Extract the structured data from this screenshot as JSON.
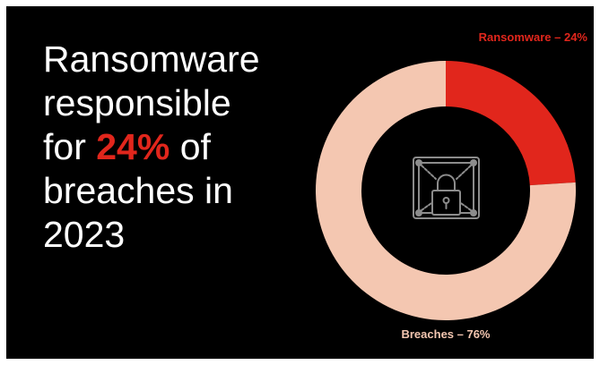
{
  "headline": {
    "line1": "Ransomware",
    "line2": "responsible",
    "line3_prefix": "for ",
    "line3_highlight": "24%",
    "line3_suffix": " of",
    "line4": "breaches in",
    "line5": "2023"
  },
  "colors": {
    "background": "#000000",
    "text": "#ffffff",
    "accent": "#e1261c",
    "breaches": "#f4c7b1",
    "icon": "#8c8c8c"
  },
  "center_icon": "padlock-chain-icon",
  "chart_data": {
    "type": "pie",
    "style": "donut",
    "title": "",
    "slices": [
      {
        "label": "Ransomware – 24%",
        "value": 24,
        "color": "#e1261c"
      },
      {
        "label": "Breaches – 76%",
        "value": 76,
        "color": "#f4c7b1"
      }
    ]
  }
}
